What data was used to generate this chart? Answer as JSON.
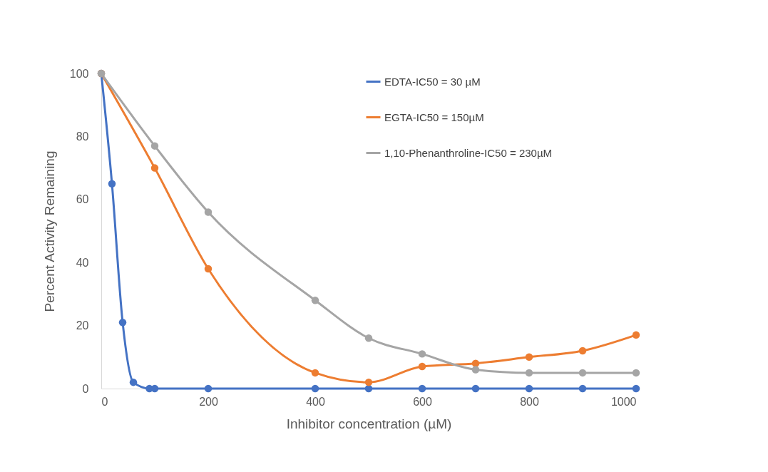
{
  "chart_data": {
    "type": "line",
    "xlabel": "Inhibitor concentration (µM)",
    "ylabel": "Percent Activity Remaining",
    "xlim": [
      0,
      1000
    ],
    "xticks": [
      0,
      200,
      400,
      600,
      800,
      1000
    ],
    "ylim": [
      0,
      100
    ],
    "yticks": [
      0,
      20,
      40,
      60,
      80,
      100
    ],
    "grid": false,
    "legend": "top right",
    "marker": "circle",
    "line_style": "solid",
    "series": [
      {
        "name": "EDTA-IC50 = 30 µM",
        "color": "#4472c4",
        "x": [
          0,
          20,
          40,
          60,
          90,
          100,
          200,
          400,
          500,
          600,
          700,
          800,
          900,
          1000
        ],
        "values": [
          100,
          65,
          21,
          2,
          0,
          0,
          0,
          0,
          0,
          0,
          0,
          0,
          0,
          0
        ]
      },
      {
        "name": "EGTA-IC50 = 150µM",
        "color": "#ed7d31",
        "x": [
          0,
          100,
          200,
          400,
          500,
          600,
          700,
          800,
          900,
          1000
        ],
        "values": [
          100,
          70,
          38,
          5,
          2,
          7,
          8,
          10,
          12,
          17
        ]
      },
      {
        "name": "1,10-Phenanthroline-IC50 = 230µM",
        "color": "#a5a5a5",
        "x": [
          0,
          100,
          200,
          400,
          500,
          600,
          700,
          800,
          900,
          1000
        ],
        "values": [
          100,
          77,
          56,
          28,
          16,
          11,
          6,
          5,
          5,
          5
        ]
      }
    ]
  }
}
